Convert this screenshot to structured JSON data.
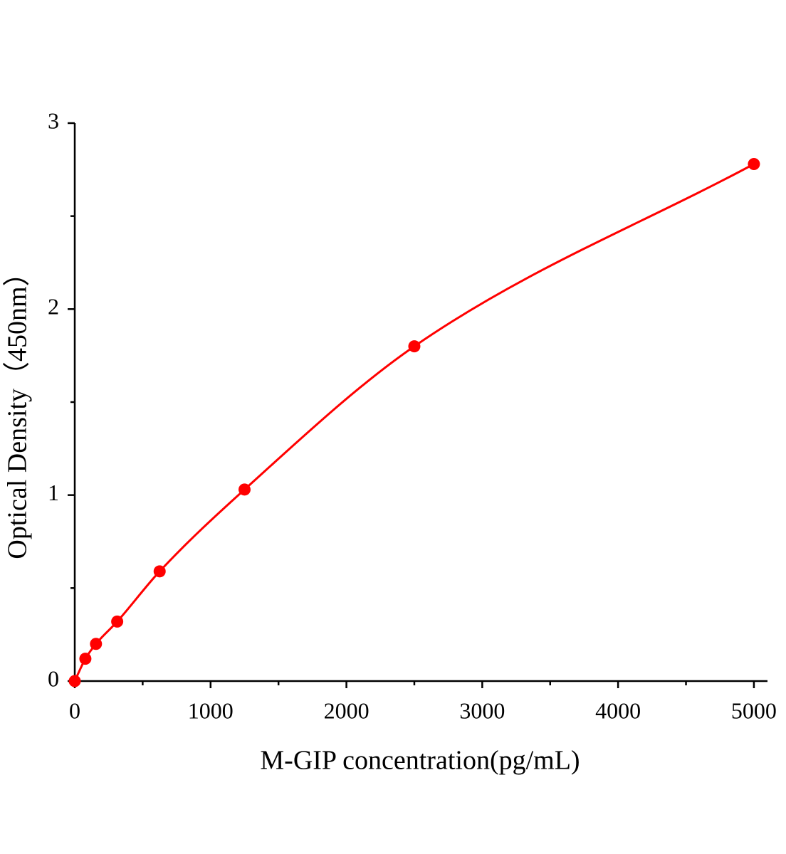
{
  "chart_data": {
    "type": "line",
    "x_label": "M-GIP concentration(pg/mL)",
    "y_label": "Optical Density（450nm）",
    "x": [
      0,
      78.125,
      156.25,
      312.5,
      625,
      1250,
      2500,
      5000
    ],
    "series": [
      {
        "color": "#ff0000",
        "values": [
          0,
          0.12,
          0.2,
          0.32,
          0.59,
          1.03,
          1.8,
          2.78
        ]
      }
    ],
    "markers": true,
    "smooth": true,
    "xlim": [
      0,
      5100
    ],
    "ylim": [
      0,
      3
    ],
    "xticks": [
      0,
      1000,
      2000,
      3000,
      4000,
      5000
    ],
    "yticks": [
      0,
      1,
      2,
      3
    ],
    "xminorticks": [
      500,
      1500,
      2500,
      3500,
      4500
    ],
    "yminorticks": [
      0.5,
      1.5,
      2.5
    ],
    "grid": false
  }
}
